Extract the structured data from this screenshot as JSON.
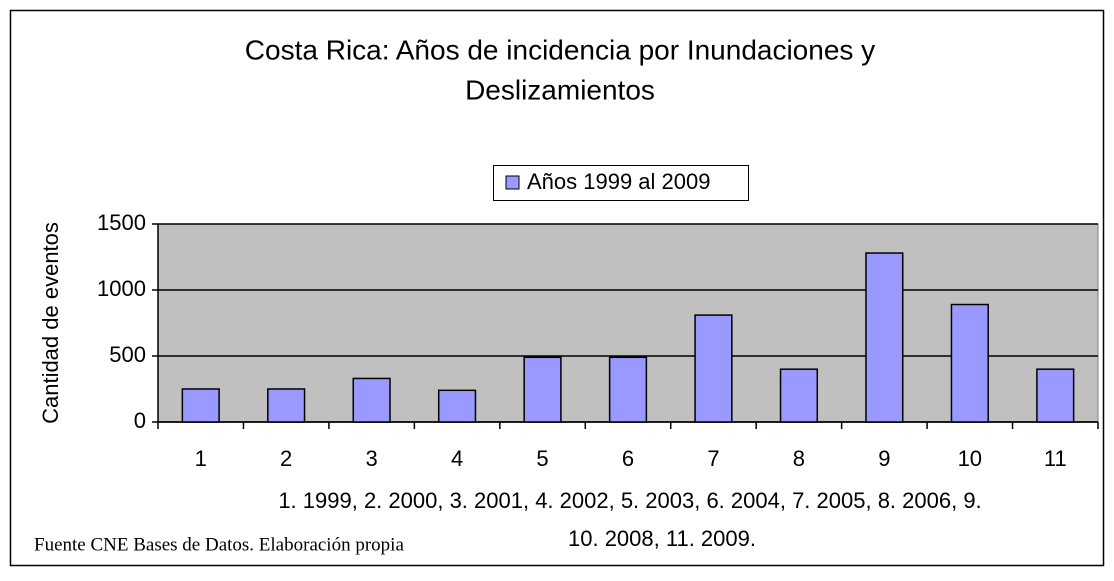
{
  "chart_data": {
    "type": "bar",
    "title": [
      "Costa Rica: Años de incidencia por Inundaciones y",
      "Deslizamientos"
    ],
    "ylabel": "Cantidad de eventos",
    "xlabel": [
      "1. 1999, 2. 2000, 3. 2001, 4. 2002, 5. 2003, 6. 2004, 7. 2005, 8. 2006, 9.",
      "10. 2008, 11. 2009."
    ],
    "note": "Fuente CNE Bases de Datos. Elaboración propia",
    "categories": [
      "1",
      "2",
      "3",
      "4",
      "5",
      "6",
      "7",
      "8",
      "9",
      "10",
      "11"
    ],
    "series": [
      {
        "name": "Años 1999 al 2009",
        "color": "#9999ff",
        "values": [
          250,
          250,
          330,
          240,
          490,
          490,
          810,
          400,
          1280,
          890,
          400
        ]
      }
    ],
    "ylim": [
      0,
      1500
    ],
    "yticks": [
      0,
      500,
      1000,
      1500
    ],
    "grid": true,
    "legend": "top"
  }
}
